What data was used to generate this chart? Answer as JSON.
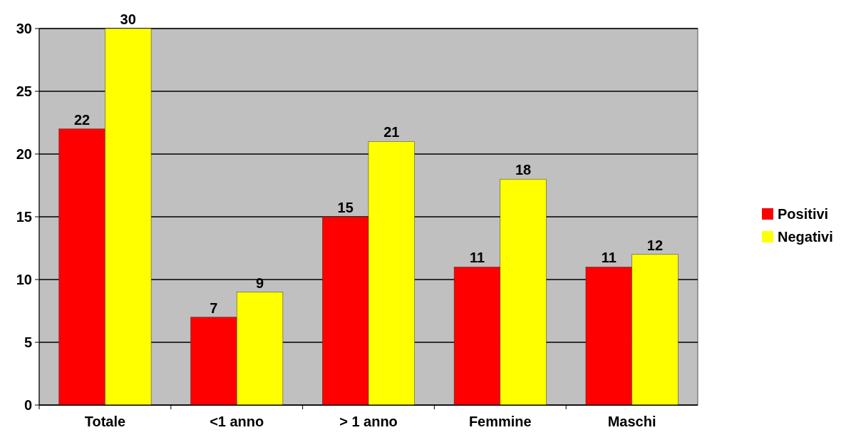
{
  "chart_data": {
    "type": "bar",
    "categories": [
      "Totale",
      "<1 anno",
      "> 1 anno",
      "Femmine",
      "Maschi"
    ],
    "series": [
      {
        "name": "Positivi",
        "color": "#ff0000",
        "values": [
          22,
          7,
          15,
          11,
          11
        ]
      },
      {
        "name": "Negativi",
        "color": "#ffff00",
        "values": [
          30,
          9,
          21,
          18,
          12
        ]
      }
    ],
    "ylim": [
      0,
      30
    ],
    "yticks": [
      0,
      5,
      10,
      15,
      20,
      25,
      30
    ],
    "grid": "y",
    "legend": "right",
    "data_labels": true
  }
}
